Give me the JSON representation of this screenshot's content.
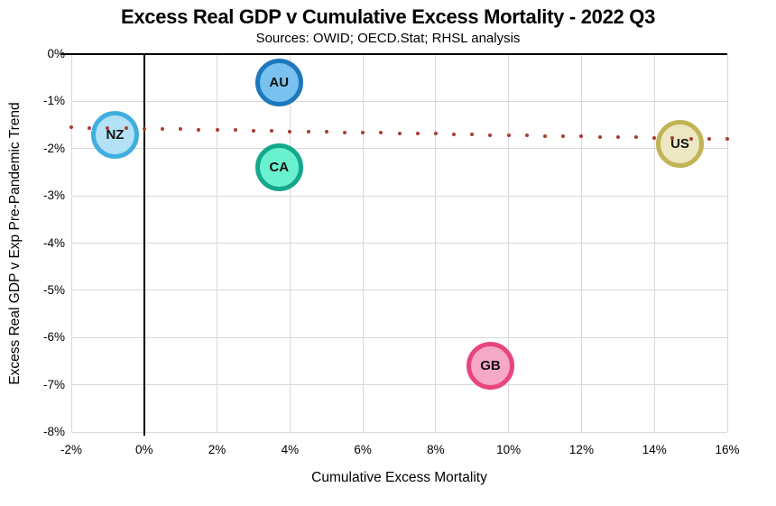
{
  "chart_data": {
    "type": "scatter",
    "title": "Excess Real GDP v Cumulative Excess Mortality - 2022 Q3",
    "subtitle": "Sources: OWID; OECD.Stat; RHSL analysis",
    "xlabel": "Cumulative Excess Mortality",
    "ylabel": "Excess Real GDP v Exp Pre-Pandemic Trend",
    "xlim": [
      -2,
      16
    ],
    "ylim": [
      -8,
      0
    ],
    "grid": true,
    "grid_color": "#D9D9D9",
    "axis_color": "#000000",
    "background": "#FFFFFF",
    "x_ticks": [
      {
        "value": -2,
        "label": "-2%"
      },
      {
        "value": 0,
        "label": "0%"
      },
      {
        "value": 2,
        "label": "2%"
      },
      {
        "value": 4,
        "label": "4%"
      },
      {
        "value": 6,
        "label": "6%"
      },
      {
        "value": 8,
        "label": "8%"
      },
      {
        "value": 10,
        "label": "10%"
      },
      {
        "value": 12,
        "label": "12%"
      },
      {
        "value": 14,
        "label": "14%"
      },
      {
        "value": 16,
        "label": "16%"
      }
    ],
    "y_ticks": [
      {
        "value": 0,
        "label": "0%"
      },
      {
        "value": -1,
        "label": "-1%"
      },
      {
        "value": -2,
        "label": "-2%"
      },
      {
        "value": -3,
        "label": "-3%"
      },
      {
        "value": -4,
        "label": "-4%"
      },
      {
        "value": -5,
        "label": "-5%"
      },
      {
        "value": -6,
        "label": "-6%"
      },
      {
        "value": -7,
        "label": "-7%"
      },
      {
        "value": -8,
        "label": "-8%"
      }
    ],
    "points": [
      {
        "label": "NZ",
        "x": -0.8,
        "y": -1.7,
        "fill": "#B3E1F5",
        "stroke": "#41AEE0"
      },
      {
        "label": "AU",
        "x": 3.7,
        "y": -0.6,
        "fill": "#79C2F0",
        "stroke": "#1D78BE"
      },
      {
        "label": "CA",
        "x": 3.7,
        "y": -2.4,
        "fill": "#6AF1D0",
        "stroke": "#14A88B"
      },
      {
        "label": "GB",
        "x": 9.5,
        "y": -6.6,
        "fill": "#F5A9C6",
        "stroke": "#E8457F"
      },
      {
        "label": "US",
        "x": 14.7,
        "y": -1.9,
        "fill": "#EDE8C3",
        "stroke": "#C2B455"
      }
    ],
    "trendline": {
      "style": "dotted",
      "color": "#A93C31",
      "x_start": -2,
      "y_start": -1.55,
      "x_end": 16,
      "y_end": -1.8,
      "dot_count": 37
    }
  }
}
